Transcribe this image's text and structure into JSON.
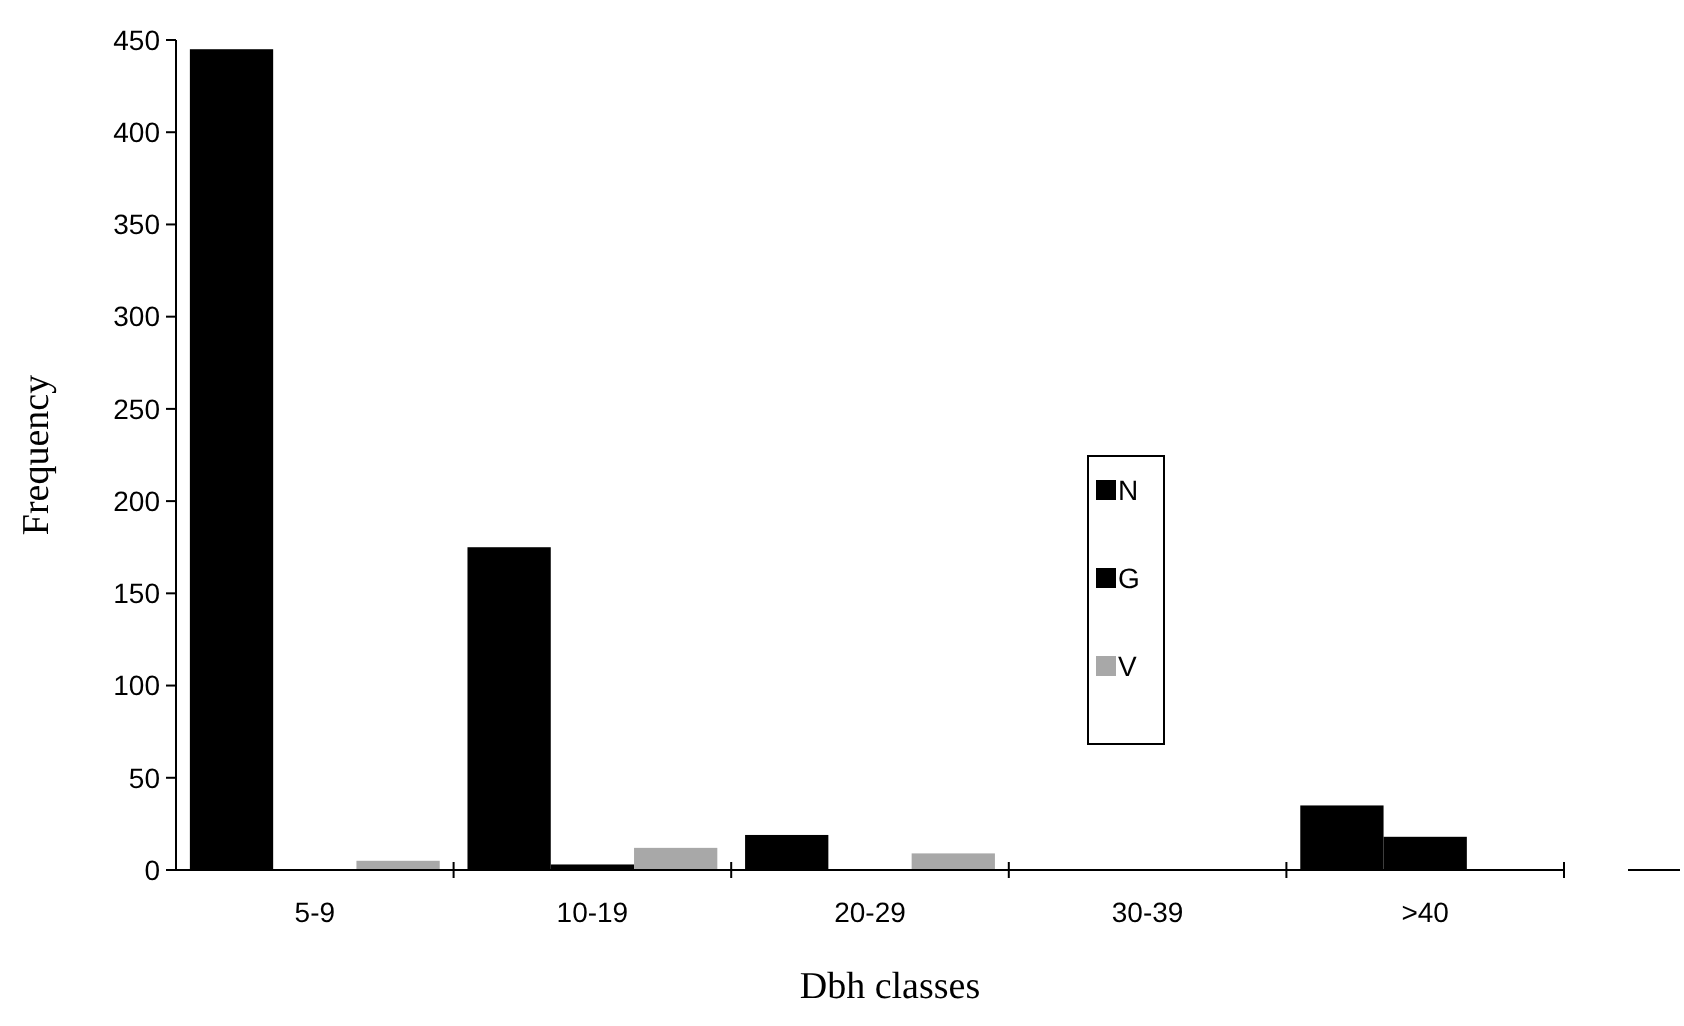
{
  "chart_data": {
    "type": "bar",
    "xlabel": "Dbh classes",
    "ylabel": "Frequency",
    "categories": [
      "5-9",
      "10-19",
      "20-29",
      "30-39",
      ">40"
    ],
    "series": [
      {
        "name": "N",
        "color": "#000000",
        "values": [
          445,
          175,
          19,
          null,
          35
        ]
      },
      {
        "name": "G",
        "color": "#000000",
        "values": [
          null,
          3,
          null,
          0,
          18
        ]
      },
      {
        "name": "V",
        "color": "#a8a8a8",
        "values": [
          5,
          12,
          9,
          null,
          0
        ]
      }
    ],
    "ylim": [
      0,
      450
    ],
    "yticks": [
      0,
      50,
      100,
      150,
      200,
      250,
      300,
      350,
      400,
      450
    ],
    "grid": false,
    "legend": "right"
  }
}
